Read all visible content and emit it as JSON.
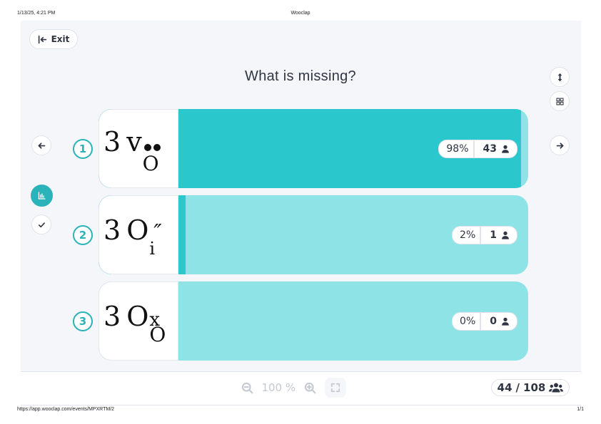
{
  "print_header": {
    "datetime": "1/13/25, 4:21 PM",
    "title": "Wooclap"
  },
  "print_footer": {
    "url": "https://app.wooclap.com/events/MPXRTM/2",
    "page": "1/1"
  },
  "toolbar": {
    "exit_label": "Exit"
  },
  "question": "What is missing?",
  "colors": {
    "accent": "#2ab3b8",
    "bar_fill": "#2ac7cc",
    "bar_track": "#8ee3e7"
  },
  "icons": {
    "exit": "exit-icon",
    "prev": "arrow-left-icon",
    "next": "arrow-right-icon",
    "results": "bar-chart-icon",
    "correct": "check-icon",
    "resize": "vertical-resize-icon",
    "layout": "grid-layout-icon",
    "user": "user-icon",
    "group": "users-icon",
    "zoom_out": "zoom-out-icon",
    "zoom_in": "zoom-in-icon",
    "fullscreen": "fullscreen-icon"
  },
  "options": [
    {
      "number": "1",
      "coef": "3",
      "base": "v",
      "sup": "••",
      "sub": "O",
      "percent_label": "98%",
      "percent": 0.98,
      "count": "43"
    },
    {
      "number": "2",
      "coef": "3",
      "base": "O",
      "sup": "″",
      "sub": "i",
      "percent_label": "2%",
      "percent": 0.02,
      "count": "1"
    },
    {
      "number": "3",
      "coef": "3",
      "base": "O",
      "sup": "x",
      "sub": "O",
      "percent_label": "0%",
      "percent": 0.0,
      "count": "0"
    }
  ],
  "zoom": {
    "value": "100 %"
  },
  "participants": {
    "current": "44",
    "total": "108",
    "separator": "/"
  }
}
